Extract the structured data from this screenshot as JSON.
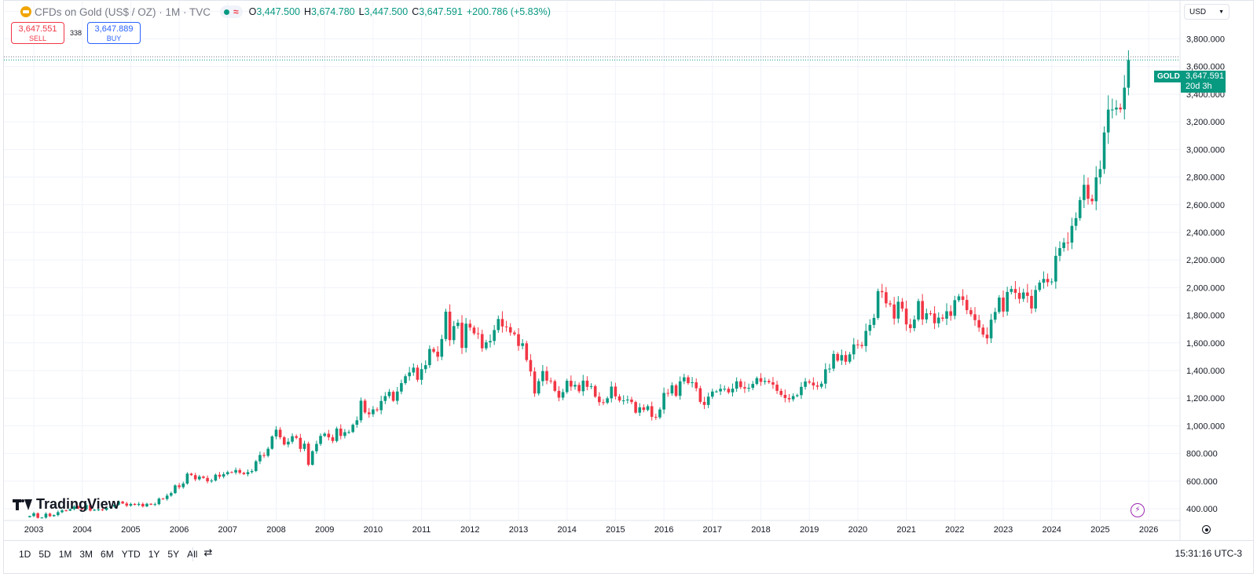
{
  "header": {
    "symbol_title": "CFDs on Gold (US$ / OZ) · 1M · TVC",
    "symbol_icon": "gold-bar-icon",
    "ohlc": [
      {
        "k": "O",
        "v": "3,447.500"
      },
      {
        "k": "H",
        "v": "3,674.780"
      },
      {
        "k": "L",
        "v": "3,447.500"
      },
      {
        "k": "C",
        "v": "3,647.591"
      }
    ],
    "change": "+200.786 (+5.83%)"
  },
  "trade": {
    "sell_price": "3,647.551",
    "sell_label": "SELL",
    "spread": "338",
    "buy_price": "3,647.889",
    "buy_label": "BUY"
  },
  "currency": {
    "selected": "USD"
  },
  "price_tag": {
    "symbol": "GOLD",
    "price": "3,647.591",
    "countdown": "20d 3h"
  },
  "branding": {
    "logo_text": "TradingView"
  },
  "bottom": {
    "ranges": [
      "1D",
      "5D",
      "1M",
      "3M",
      "6M",
      "YTD",
      "1Y",
      "5Y",
      "All"
    ],
    "clock": "15:31:16 UTC-3"
  },
  "colors": {
    "up": "#089981",
    "down": "#f23645",
    "grid": "#f0f3fa"
  },
  "chart_data": {
    "type": "candlestick",
    "interval": "monthly",
    "title": "CFDs on Gold (US$ / OZ)",
    "grid": true,
    "x_ticks": [
      "2003",
      "2004",
      "2005",
      "2006",
      "2007",
      "2008",
      "2009",
      "2010",
      "2011",
      "2012",
      "2013",
      "2014",
      "2015",
      "2016",
      "2017",
      "2018",
      "2019",
      "2020",
      "2021",
      "2022",
      "2023",
      "2024",
      "2025",
      "2026"
    ],
    "y_ticks": [
      400,
      600,
      800,
      1000,
      1200,
      1400,
      1600,
      1800,
      2000,
      2200,
      2400,
      2600,
      2800,
      3000,
      3200,
      3400,
      3600,
      3800,
      4000
    ],
    "y_tick_labels": [
      "400.000",
      "600.000",
      "800.000",
      "1,000.000",
      "1,200.000",
      "1,400.000",
      "1,600.000",
      "1,800.000",
      "2,000.000",
      "2,200.000",
      "2,400.000",
      "2,600.000",
      "2,800.000",
      "3,000.000",
      "3,200.000",
      "3,400.000",
      "3,600.000",
      "3,800.000",
      "4,000.000"
    ],
    "ylim": [
      315,
      4070
    ],
    "start": "2002-12",
    "last_price": 3647.591,
    "monthly_close": [
      347,
      367,
      334,
      336,
      364,
      346,
      354,
      375,
      388,
      386,
      397,
      416,
      402,
      396,
      427,
      387,
      393,
      395,
      391,
      407,
      415,
      429,
      452,
      438,
      422,
      435,
      428,
      435,
      417,
      436,
      429,
      433,
      473,
      470,
      495,
      513,
      569,
      556,
      582,
      654,
      643,
      613,
      633,
      623,
      598,
      604,
      646,
      632,
      650,
      665,
      662,
      680,
      660,
      650,
      665,
      673,
      743,
      789,
      783,
      834,
      923,
      972,
      917,
      865,
      885,
      925,
      913,
      833,
      871,
      718,
      816,
      869,
      927,
      943,
      917,
      890,
      980,
      927,
      954,
      955,
      1008,
      1040,
      1182,
      1097,
      1084,
      1119,
      1113,
      1180,
      1215,
      1246,
      1181,
      1248,
      1309,
      1359,
      1386,
      1421,
      1333,
      1410,
      1439,
      1556,
      1536,
      1500,
      1628,
      1826,
      1620,
      1722,
      1746,
      1564,
      1739,
      1711,
      1669,
      1664,
      1561,
      1604,
      1614,
      1693,
      1773,
      1719,
      1714,
      1675,
      1663,
      1578,
      1597,
      1476,
      1393,
      1234,
      1323,
      1396,
      1327,
      1323,
      1253,
      1204,
      1244,
      1326,
      1284,
      1296,
      1250,
      1327,
      1282,
      1287,
      1211,
      1171,
      1167,
      1199,
      1284,
      1213,
      1183,
      1184,
      1190,
      1172,
      1095,
      1134,
      1115,
      1142,
      1065,
      1061,
      1118,
      1238,
      1234,
      1293,
      1217,
      1322,
      1351,
      1309,
      1315,
      1272,
      1173,
      1151,
      1211,
      1248,
      1249,
      1268,
      1268,
      1242,
      1269,
      1322,
      1280,
      1270,
      1275,
      1303,
      1345,
      1318,
      1325,
      1315,
      1298,
      1253,
      1224,
      1201,
      1192,
      1215,
      1222,
      1282,
      1321,
      1313,
      1292,
      1283,
      1305,
      1409,
      1414,
      1520,
      1472,
      1512,
      1464,
      1517,
      1589,
      1585,
      1577,
      1687,
      1730,
      1781,
      1975,
      1967,
      1886,
      1878,
      1776,
      1898,
      1848,
      1734,
      1707,
      1769,
      1903,
      1770,
      1814,
      1813,
      1742,
      1783,
      1775,
      1829,
      1796,
      1909,
      1937,
      1911,
      1837,
      1807,
      1765,
      1711,
      1660,
      1633,
      1768,
      1824,
      1928,
      1827,
      1969,
      1990,
      1962,
      1919,
      1965,
      1940,
      1849,
      1983,
      2036,
      2063,
      2039,
      2044,
      2230,
      2286,
      2327,
      2326,
      2447,
      2503,
      2634,
      2744,
      2643,
      2625,
      2798,
      2858,
      3123,
      3288,
      3289,
      3303,
      3290,
      3447,
      3648
    ]
  }
}
